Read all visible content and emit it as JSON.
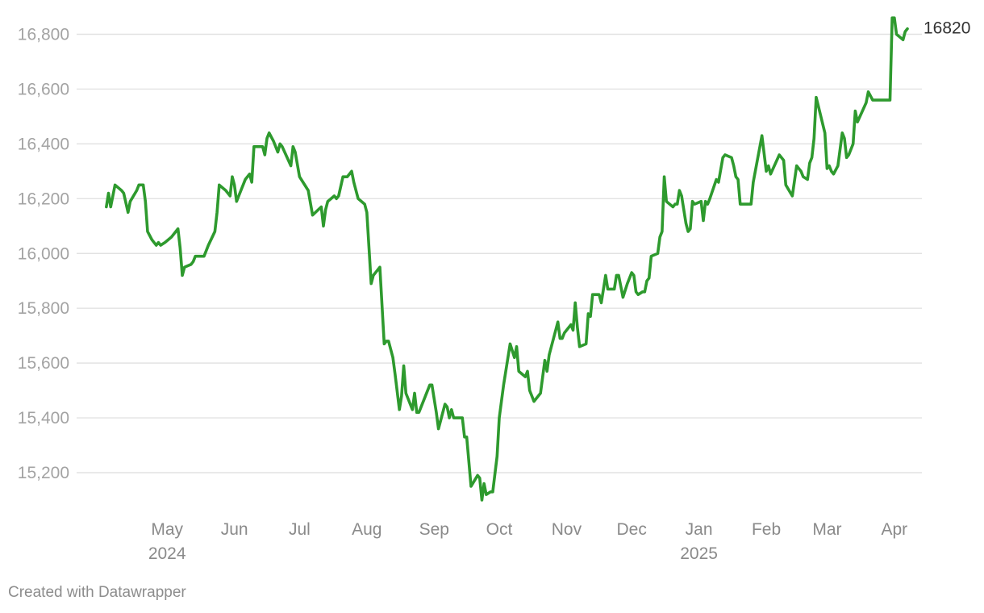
{
  "colors": {
    "line": "#2e9a2e",
    "grid": "#e2e2e2",
    "tick_text": "#a3a3a3",
    "x_tick_text": "#8a8a8a",
    "label_text": "#333333"
  },
  "chart_data": {
    "type": "line",
    "title": "",
    "xlabel": "",
    "ylabel": "",
    "ylim": [
      15100,
      16870
    ],
    "yticks": [
      15200,
      15400,
      15600,
      15800,
      16000,
      16200,
      16400,
      16600,
      16800
    ],
    "ytick_labels": [
      "15,200",
      "15,400",
      "15,600",
      "15,800",
      "16,000",
      "16,200",
      "16,400",
      "16,600",
      "16,800"
    ],
    "x_axis_type": "date",
    "xlim": [
      "2024-04-11",
      "2025-04-22"
    ],
    "xticks": [
      {
        "date": "2024-05-01",
        "label": "May",
        "sublabel": "2024"
      },
      {
        "date": "2024-06-01",
        "label": "Jun",
        "sublabel": ""
      },
      {
        "date": "2024-07-01",
        "label": "Jul",
        "sublabel": ""
      },
      {
        "date": "2024-08-01",
        "label": "Aug",
        "sublabel": ""
      },
      {
        "date": "2024-09-01",
        "label": "Sep",
        "sublabel": ""
      },
      {
        "date": "2024-10-01",
        "label": "Oct",
        "sublabel": ""
      },
      {
        "date": "2024-11-01",
        "label": "Nov",
        "sublabel": ""
      },
      {
        "date": "2024-12-01",
        "label": "Dec",
        "sublabel": ""
      },
      {
        "date": "2025-01-01",
        "label": "Jan",
        "sublabel": "2025"
      },
      {
        "date": "2025-02-01",
        "label": "Feb",
        "sublabel": ""
      },
      {
        "date": "2025-03-01",
        "label": "Mar",
        "sublabel": ""
      },
      {
        "date": "2025-04-01",
        "label": "Apr",
        "sublabel": ""
      }
    ],
    "grid": true,
    "series": [
      {
        "end_label": "16820",
        "points": [
          [
            "2024-04-18",
            16170
          ],
          [
            "2024-04-19",
            16220
          ],
          [
            "2024-04-20",
            16170
          ],
          [
            "2024-04-22",
            16250
          ],
          [
            "2024-04-25",
            16230
          ],
          [
            "2024-04-26",
            16220
          ],
          [
            "2024-04-28",
            16150
          ],
          [
            "2024-04-29",
            16190
          ],
          [
            "2024-05-02",
            16230
          ],
          [
            "2024-05-03",
            16250
          ],
          [
            "2024-05-05",
            16250
          ],
          [
            "2024-05-06",
            16190
          ],
          [
            "2024-05-07",
            16080
          ],
          [
            "2024-05-09",
            16050
          ],
          [
            "2024-05-11",
            16030
          ],
          [
            "2024-05-12",
            16040
          ],
          [
            "2024-05-13",
            16030
          ],
          [
            "2024-05-15",
            16040
          ],
          [
            "2024-05-18",
            16060
          ],
          [
            "2024-05-21",
            16090
          ],
          [
            "2024-05-22",
            16020
          ],
          [
            "2024-05-23",
            15920
          ],
          [
            "2024-05-24",
            15950
          ],
          [
            "2024-05-27",
            15960
          ],
          [
            "2024-05-28",
            15970
          ],
          [
            "2024-05-29",
            15990
          ],
          [
            "2024-06-01",
            15990
          ],
          [
            "2024-06-02",
            15990
          ],
          [
            "2024-06-04",
            16030
          ],
          [
            "2024-06-07",
            16080
          ],
          [
            "2024-06-08",
            16150
          ],
          [
            "2024-06-09",
            16250
          ],
          [
            "2024-06-12",
            16230
          ],
          [
            "2024-06-14",
            16210
          ],
          [
            "2024-06-15",
            16280
          ],
          [
            "2024-06-16",
            16250
          ],
          [
            "2024-06-17",
            16190
          ],
          [
            "2024-06-19",
            16230
          ],
          [
            "2024-06-21",
            16270
          ],
          [
            "2024-06-22",
            16280
          ],
          [
            "2024-06-23",
            16290
          ],
          [
            "2024-06-24",
            16260
          ],
          [
            "2024-06-25",
            16390
          ],
          [
            "2024-06-28",
            16390
          ],
          [
            "2024-06-29",
            16390
          ],
          [
            "2024-06-30",
            16360
          ],
          [
            "2024-07-01",
            16420
          ],
          [
            "2024-07-02",
            16440
          ],
          [
            "2024-07-04",
            16410
          ],
          [
            "2024-07-06",
            16370
          ],
          [
            "2024-07-07",
            16400
          ],
          [
            "2024-07-08",
            16390
          ],
          [
            "2024-07-12",
            16320
          ],
          [
            "2024-07-13",
            16390
          ],
          [
            "2024-07-14",
            16370
          ],
          [
            "2024-07-16",
            16280
          ],
          [
            "2024-07-20",
            16230
          ],
          [
            "2024-07-22",
            16140
          ],
          [
            "2024-07-26",
            16170
          ],
          [
            "2024-07-27",
            16100
          ],
          [
            "2024-07-28",
            16160
          ],
          [
            "2024-07-29",
            16190
          ],
          [
            "2024-08-01",
            16210
          ],
          [
            "2024-08-02",
            16200
          ],
          [
            "2024-08-03",
            16210
          ],
          [
            "2024-08-05",
            16280
          ],
          [
            "2024-08-07",
            16280
          ],
          [
            "2024-08-09",
            16300
          ],
          [
            "2024-08-10",
            16260
          ],
          [
            "2024-08-12",
            16200
          ],
          [
            "2024-08-15",
            16180
          ],
          [
            "2024-08-16",
            16150
          ],
          [
            "2024-08-18",
            15890
          ],
          [
            "2024-08-19",
            15920
          ],
          [
            "2024-08-22",
            15950
          ],
          [
            "2024-08-24",
            15670
          ],
          [
            "2024-08-25",
            15680
          ],
          [
            "2024-08-26",
            15680
          ],
          [
            "2024-08-28",
            15620
          ],
          [
            "2024-08-29",
            15560
          ],
          [
            "2024-08-31",
            15430
          ],
          [
            "2024-09-01",
            15480
          ],
          [
            "2024-09-02",
            15590
          ],
          [
            "2024-09-03",
            15490
          ],
          [
            "2024-09-06",
            15430
          ],
          [
            "2024-09-07",
            15490
          ],
          [
            "2024-09-08",
            15420
          ],
          [
            "2024-09-09",
            15420
          ],
          [
            "2024-09-11",
            15460
          ],
          [
            "2024-09-14",
            15520
          ],
          [
            "2024-09-15",
            15520
          ],
          [
            "2024-09-17",
            15420
          ],
          [
            "2024-09-18",
            15360
          ],
          [
            "2024-09-20",
            15420
          ],
          [
            "2024-09-21",
            15450
          ],
          [
            "2024-09-22",
            15440
          ],
          [
            "2024-09-23",
            15400
          ],
          [
            "2024-09-24",
            15430
          ],
          [
            "2024-09-25",
            15400
          ],
          [
            "2024-09-26",
            15400
          ],
          [
            "2024-09-29",
            15400
          ],
          [
            "2024-09-30",
            15330
          ],
          [
            "2024-10-01",
            15330
          ],
          [
            "2024-10-03",
            15150
          ],
          [
            "2024-10-06",
            15190
          ],
          [
            "2024-10-07",
            15180
          ],
          [
            "2024-10-08",
            15100
          ],
          [
            "2024-10-09",
            15160
          ],
          [
            "2024-10-10",
            15120
          ],
          [
            "2024-10-12",
            15130
          ],
          [
            "2024-10-13",
            15130
          ],
          [
            "2024-10-15",
            15260
          ],
          [
            "2024-10-16",
            15400
          ],
          [
            "2024-10-18",
            15520
          ],
          [
            "2024-10-21",
            15670
          ],
          [
            "2024-10-23",
            15620
          ],
          [
            "2024-10-24",
            15660
          ],
          [
            "2024-10-25",
            15570
          ],
          [
            "2024-10-28",
            15550
          ],
          [
            "2024-10-29",
            15570
          ],
          [
            "2024-10-30",
            15500
          ],
          [
            "2024-10-31",
            15480
          ],
          [
            "2024-11-01",
            15460
          ],
          [
            "2024-11-04",
            15490
          ],
          [
            "2024-11-06",
            15610
          ],
          [
            "2024-11-07",
            15570
          ],
          [
            "2024-11-08",
            15630
          ],
          [
            "2024-11-12",
            15750
          ],
          [
            "2024-11-13",
            15690
          ],
          [
            "2024-11-14",
            15690
          ],
          [
            "2024-11-15",
            15710
          ],
          [
            "2024-11-17",
            15730
          ],
          [
            "2024-11-18",
            15740
          ],
          [
            "2024-11-19",
            15720
          ],
          [
            "2024-11-20",
            15820
          ],
          [
            "2024-11-21",
            15730
          ],
          [
            "2024-11-22",
            15660
          ],
          [
            "2024-11-25",
            15670
          ],
          [
            "2024-11-26",
            15780
          ],
          [
            "2024-11-27",
            15770
          ],
          [
            "2024-11-28",
            15850
          ],
          [
            "2024-12-01",
            15850
          ],
          [
            "2024-12-02",
            15820
          ],
          [
            "2024-12-04",
            15920
          ],
          [
            "2024-12-05",
            15870
          ],
          [
            "2024-12-08",
            15870
          ],
          [
            "2024-12-09",
            15920
          ],
          [
            "2024-12-10",
            15920
          ],
          [
            "2024-12-12",
            15840
          ],
          [
            "2024-12-14",
            15890
          ],
          [
            "2024-12-16",
            15930
          ],
          [
            "2024-12-17",
            15920
          ],
          [
            "2024-12-18",
            15860
          ],
          [
            "2024-12-19",
            15850
          ],
          [
            "2024-12-21",
            15860
          ],
          [
            "2024-12-22",
            15860
          ],
          [
            "2024-12-23",
            15900
          ],
          [
            "2024-12-24",
            15910
          ],
          [
            "2024-12-25",
            15990
          ],
          [
            "2024-12-28",
            16000
          ],
          [
            "2024-12-29",
            16060
          ],
          [
            "2024-12-30",
            16080
          ],
          [
            "2024-12-31",
            16280
          ],
          [
            "2025-01-01",
            16190
          ],
          [
            "2025-01-04",
            16170
          ],
          [
            "2025-01-05",
            16180
          ],
          [
            "2025-01-06",
            16180
          ],
          [
            "2025-01-07",
            16230
          ],
          [
            "2025-01-08",
            16210
          ],
          [
            "2025-01-10",
            16110
          ],
          [
            "2025-01-11",
            16080
          ],
          [
            "2025-01-12",
            16090
          ],
          [
            "2025-01-13",
            16190
          ],
          [
            "2025-01-14",
            16180
          ],
          [
            "2025-01-17",
            16190
          ],
          [
            "2025-01-18",
            16120
          ],
          [
            "2025-01-19",
            16190
          ],
          [
            "2025-01-20",
            16180
          ],
          [
            "2025-01-21",
            16200
          ],
          [
            "2025-01-24",
            16270
          ],
          [
            "2025-01-25",
            16260
          ],
          [
            "2025-01-27",
            16350
          ],
          [
            "2025-01-28",
            16360
          ],
          [
            "2025-01-31",
            16350
          ],
          [
            "2025-02-01",
            16320
          ],
          [
            "2025-02-02",
            16280
          ],
          [
            "2025-02-03",
            16270
          ],
          [
            "2025-02-04",
            16180
          ],
          [
            "2025-02-08",
            16180
          ],
          [
            "2025-02-09",
            16180
          ],
          [
            "2025-02-10",
            16260
          ],
          [
            "2025-02-14",
            16430
          ],
          [
            "2025-02-16",
            16300
          ],
          [
            "2025-02-17",
            16320
          ],
          [
            "2025-02-18",
            16290
          ],
          [
            "2025-02-22",
            16360
          ],
          [
            "2025-02-24",
            16340
          ],
          [
            "2025-02-25",
            16250
          ],
          [
            "2025-02-28",
            16210
          ],
          [
            "2025-03-02",
            16320
          ],
          [
            "2025-03-03",
            16310
          ],
          [
            "2025-03-04",
            16300
          ],
          [
            "2025-03-05",
            16280
          ],
          [
            "2025-03-07",
            16270
          ],
          [
            "2025-03-08",
            16330
          ],
          [
            "2025-03-09",
            16350
          ],
          [
            "2025-03-10",
            16420
          ],
          [
            "2025-03-11",
            16570
          ],
          [
            "2025-03-15",
            16440
          ],
          [
            "2025-03-16",
            16310
          ],
          [
            "2025-03-17",
            16320
          ],
          [
            "2025-03-18",
            16300
          ],
          [
            "2025-03-19",
            16290
          ],
          [
            "2025-03-21",
            16320
          ],
          [
            "2025-03-22",
            16380
          ],
          [
            "2025-03-23",
            16440
          ],
          [
            "2025-03-24",
            16420
          ],
          [
            "2025-03-25",
            16350
          ],
          [
            "2025-03-26",
            16360
          ],
          [
            "2025-03-28",
            16400
          ],
          [
            "2025-03-29",
            16520
          ],
          [
            "2025-03-30",
            16480
          ],
          [
            "2025-04-03",
            16550
          ],
          [
            "2025-04-04",
            16590
          ],
          [
            "2025-04-06",
            16560
          ],
          [
            "2025-04-13",
            16560
          ],
          [
            "2025-04-14",
            16560
          ],
          [
            "2025-04-15",
            16860
          ],
          [
            "2025-04-16",
            16860
          ],
          [
            "2025-04-17",
            16800
          ],
          [
            "2025-04-20",
            16780
          ],
          [
            "2025-04-21",
            16810
          ],
          [
            "2025-04-22",
            16820
          ]
        ]
      }
    ]
  },
  "footer": {
    "credit": "Created with Datawrapper"
  }
}
